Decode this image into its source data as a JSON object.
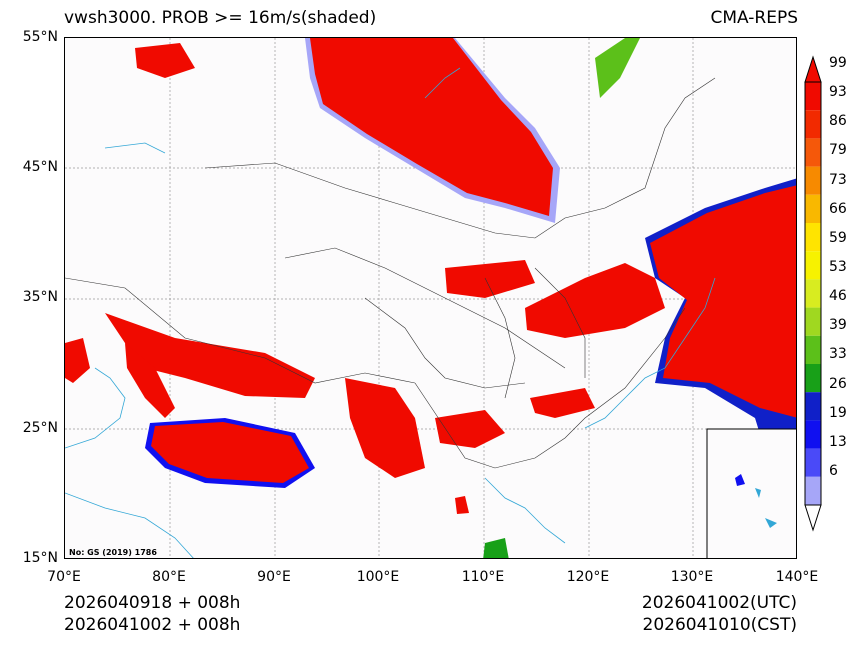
{
  "title": {
    "left": "vwsh3000. PROB >= 16m/s(shaded)",
    "right": "CMA-REPS"
  },
  "axes": {
    "lat_labels": [
      "55°N",
      "45°N",
      "35°N",
      "25°N",
      "15°N"
    ],
    "lon_labels": [
      "70°E",
      "80°E",
      "90°E",
      "100°E",
      "110°E",
      "120°E",
      "130°E",
      "140°E"
    ]
  },
  "map_note": "No: GS (2019) 1786",
  "footer": {
    "init_line1": "2026040918  +  008h",
    "init_line2": "2026041002  +  008h",
    "valid_utc": "2026041002(UTC)",
    "valid_cst": "2026041010(CST)"
  },
  "colorbar": {
    "levels": [
      "99",
      "93",
      "86",
      "79",
      "73",
      "66",
      "59",
      "53",
      "46",
      "39",
      "33",
      "26",
      "19",
      "13",
      "6"
    ],
    "colors": [
      "#f00a00",
      "#f22a00",
      "#f5580a",
      "#f78a00",
      "#f9b800",
      "#ffe400",
      "#f7f200",
      "#d8ec20",
      "#a0d820",
      "#5cc01a",
      "#18a018",
      "#1020c8",
      "#1010f0",
      "#4a4af8",
      "#a6a6f8"
    ]
  }
}
